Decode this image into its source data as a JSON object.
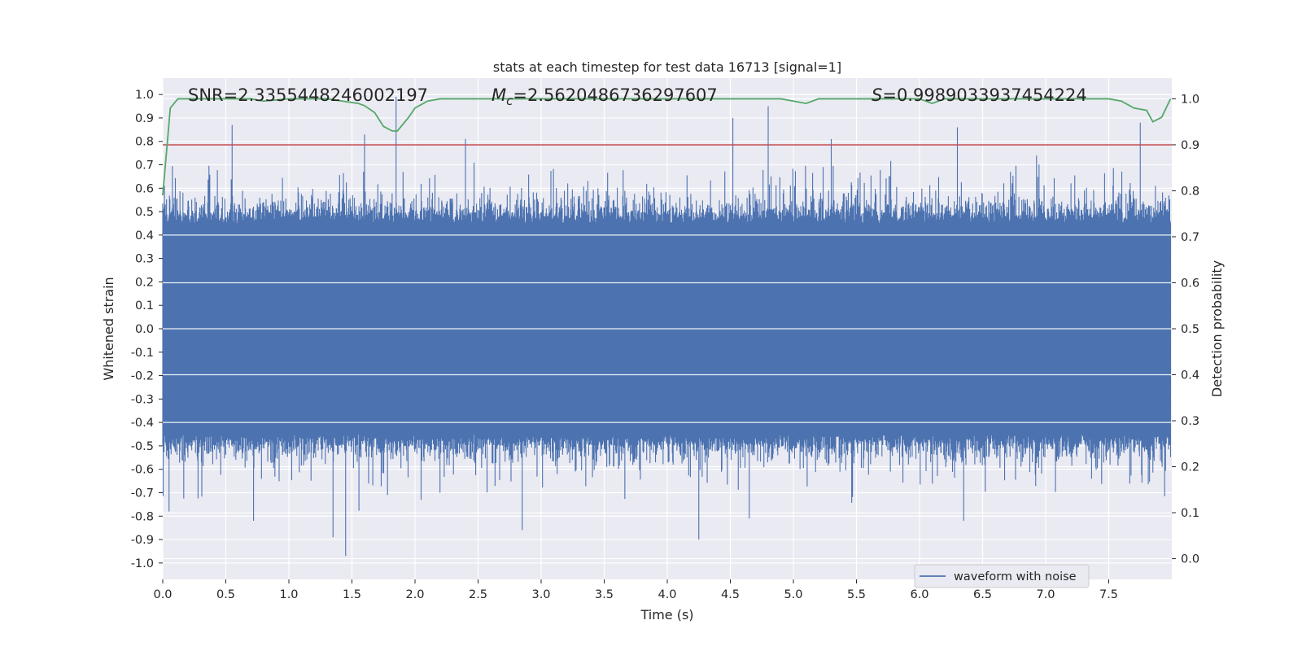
{
  "chart_data": {
    "type": "line",
    "title": "stats at each timestep for test data 16713 [signal=1]",
    "xlabel": "Time (s)",
    "ylabel": "Whitened strain",
    "ylabel_right": "Detection probability",
    "xlim": [
      0.0,
      8.0
    ],
    "ylim": [
      -1.07,
      1.07
    ],
    "ylim_right": [
      -0.045,
      1.045
    ],
    "x_ticks": [
      "0.0",
      "0.5",
      "1.0",
      "1.5",
      "2.0",
      "2.5",
      "3.0",
      "3.5",
      "4.0",
      "4.5",
      "5.0",
      "5.5",
      "6.0",
      "6.5",
      "7.0",
      "7.5"
    ],
    "y_ticks": [
      "1.0",
      "0.9",
      "0.8",
      "0.7",
      "0.6",
      "0.5",
      "0.4",
      "0.3",
      "0.2",
      "0.1",
      "0.0",
      "-0.1",
      "-0.2",
      "-0.3",
      "-0.4",
      "-0.5",
      "-0.6",
      "-0.7",
      "-0.8",
      "-0.9",
      "-1.0"
    ],
    "y_ticks_right": [
      "1.0",
      "0.9",
      "0.8",
      "0.7",
      "0.6",
      "0.5",
      "0.4",
      "0.3",
      "0.2",
      "0.1",
      "0.0"
    ],
    "grid": true,
    "annotations": {
      "snr": "SNR=2.3355448246002197",
      "mc_symbol": "M",
      "mc_sub": "c",
      "mc_value": "=2.5620486736297607",
      "s_symbol": "S",
      "s_value": "=0.9989033937454224"
    },
    "threshold": {
      "value": 0.9,
      "axis": "right",
      "color": "#c44e52"
    },
    "legend": {
      "label": "waveform with noise",
      "placement": "lower-right"
    },
    "series": [
      {
        "name": "waveform with noise",
        "axis": "left",
        "color": "#4c72b0",
        "envelope_peaks": [
          {
            "x": 0.55,
            "y": 0.87
          },
          {
            "x": 1.6,
            "y": 0.83
          },
          {
            "x": 1.85,
            "y": 0.99
          },
          {
            "x": 2.4,
            "y": 0.81
          },
          {
            "x": 4.52,
            "y": 0.9
          },
          {
            "x": 4.8,
            "y": 0.95
          },
          {
            "x": 5.3,
            "y": 0.81
          },
          {
            "x": 6.3,
            "y": 0.86
          },
          {
            "x": 7.75,
            "y": 0.88
          },
          {
            "x": 0.05,
            "y": -0.78
          },
          {
            "x": 0.72,
            "y": -0.82
          },
          {
            "x": 1.35,
            "y": -0.89
          },
          {
            "x": 1.45,
            "y": -0.97
          },
          {
            "x": 2.85,
            "y": -0.86
          },
          {
            "x": 4.25,
            "y": -0.9
          },
          {
            "x": 4.65,
            "y": -0.81
          },
          {
            "x": 6.35,
            "y": -0.82
          }
        ]
      },
      {
        "name": "detection probability",
        "axis": "right",
        "color": "#55a868",
        "x": [
          0.0,
          0.06,
          0.12,
          0.2,
          0.5,
          0.7,
          0.8,
          1.0,
          1.3,
          1.55,
          1.6,
          1.68,
          1.75,
          1.82,
          1.86,
          1.95,
          2.0,
          2.1,
          2.2,
          2.5,
          3.0,
          3.5,
          4.0,
          4.5,
          4.9,
          5.0,
          5.1,
          5.2,
          5.5,
          6.0,
          6.05,
          6.1,
          6.2,
          6.5,
          7.0,
          7.5,
          7.6,
          7.7,
          7.8,
          7.85,
          7.92,
          7.99
        ],
        "y": [
          0.79,
          0.98,
          1.0,
          1.0,
          1.0,
          1.0,
          0.995,
          1.0,
          1.0,
          0.99,
          0.985,
          0.97,
          0.94,
          0.93,
          0.93,
          0.96,
          0.98,
          0.995,
          1.0,
          1.0,
          1.0,
          1.0,
          1.0,
          1.0,
          1.0,
          0.995,
          0.99,
          1.0,
          1.0,
          1.0,
          0.995,
          0.99,
          1.0,
          1.0,
          1.0,
          1.0,
          0.995,
          0.98,
          0.975,
          0.95,
          0.96,
          1.0
        ]
      }
    ]
  }
}
